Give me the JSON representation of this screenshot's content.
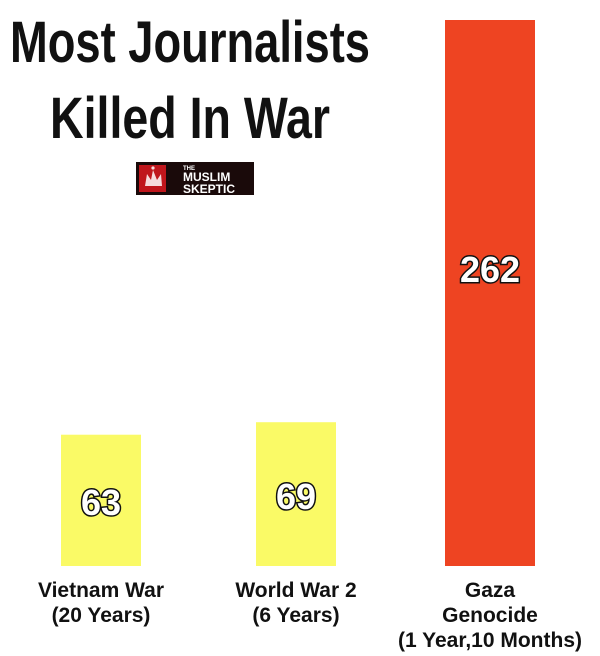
{
  "chart_data": {
    "type": "bar",
    "title_lines": [
      "Most Journalists",
      "Killed In War"
    ],
    "categories": [
      [
        "Vietnam War",
        "(20 Years)"
      ],
      [
        "World War 2",
        "(6 Years)"
      ],
      [
        "Gaza",
        "Genocide",
        "(1 Year,10 Months)"
      ]
    ],
    "values": [
      63,
      69,
      262
    ],
    "value_labels": [
      "63",
      "69",
      "262"
    ],
    "bar_colors": [
      "#fafa66",
      "#fafa66",
      "#ee4422"
    ],
    "ylim": [
      0,
      262
    ],
    "grid": false,
    "legend": "none"
  },
  "logo": {
    "line_small": "THE",
    "line1": "MUSLIM",
    "line2": "SKEPTIC",
    "background_color": "#1a0a0a",
    "accent_color": "#c0161c"
  }
}
